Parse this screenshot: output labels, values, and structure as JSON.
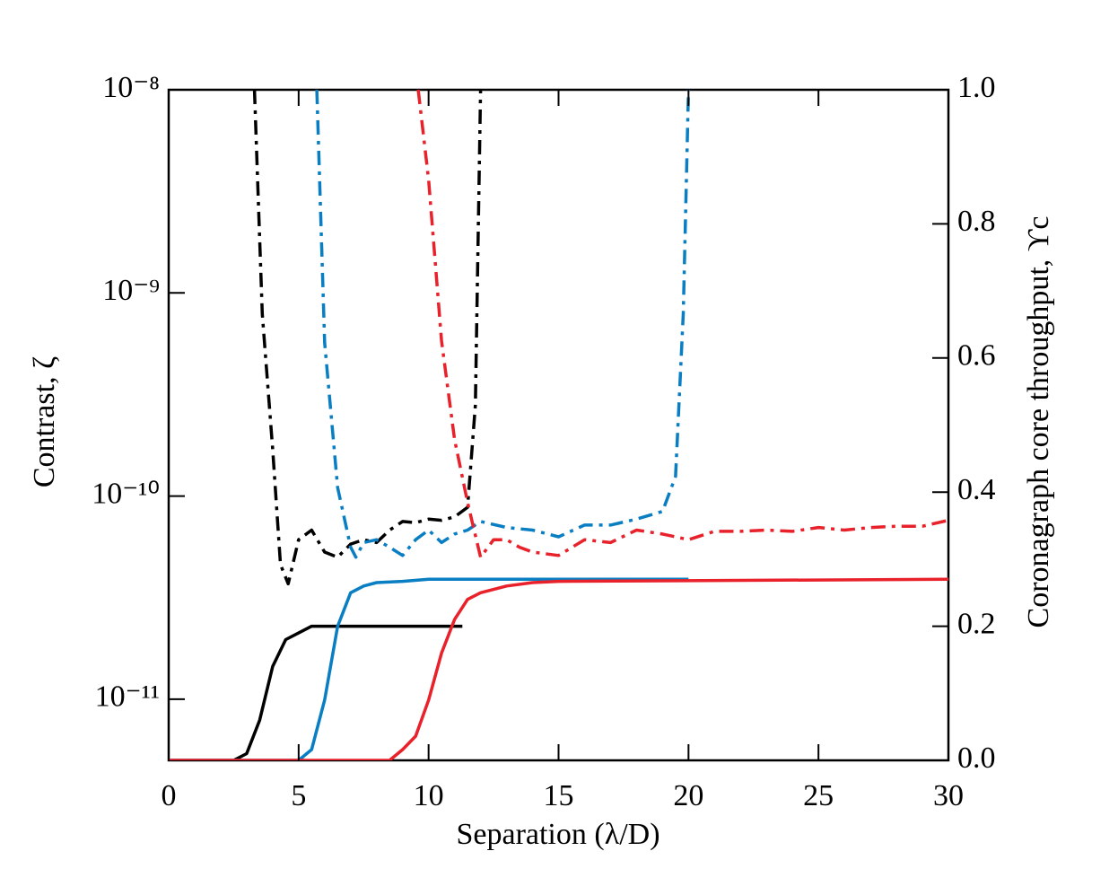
{
  "chart_data": {
    "type": "line",
    "xlabel": "Separation (λ/D)",
    "ylabel": "Contrast, ζ",
    "y2label": "Coronagraph core throughput, ϒc",
    "xlim": [
      0,
      30
    ],
    "xticks": [
      0,
      5,
      10,
      15,
      20,
      25,
      30
    ],
    "ylim": [
      5e-12,
      1e-08
    ],
    "yscale": "log",
    "yticks": [
      {
        "value": 1e-11,
        "label": "10⁻¹¹"
      },
      {
        "value": 1e-10,
        "label": "10⁻¹⁰"
      },
      {
        "value": 1e-09,
        "label": "10⁻⁹"
      },
      {
        "value": 1e-08,
        "label": "10⁻⁸"
      }
    ],
    "y2lim": [
      0,
      1
    ],
    "y2ticks": [
      {
        "value": 0,
        "label": "0.0"
      },
      0.2,
      0.4,
      0.6,
      0.8,
      {
        "value": 1,
        "label": "1.0"
      }
    ],
    "series": [
      {
        "color": "#000000",
        "linestyle": "dashdot",
        "axis": "y",
        "x": [
          3.3,
          3.6,
          4.0,
          4.3,
          4.6,
          5.0,
          5.5,
          6.0,
          6.5,
          7.0,
          7.5,
          8.0,
          8.5,
          9.0,
          9.5,
          10.0,
          10.5,
          11.0,
          11.5,
          11.8,
          12.0
        ],
        "values": [
          1e-08,
          7.9e-10,
          1.7e-10,
          4.6e-11,
          3.7e-11,
          6.1e-11,
          6.8e-11,
          5.3e-11,
          5e-11,
          5.8e-11,
          6.1e-11,
          5.9e-11,
          6.8e-11,
          7.5e-11,
          7.4e-11,
          7.7e-11,
          7.6e-11,
          7.9e-11,
          8.8e-11,
          2.8e-10,
          1e-08
        ]
      },
      {
        "color": "#0a7ec2",
        "linestyle": "dashdot",
        "axis": "y",
        "x": [
          5.7,
          6.0,
          6.5,
          7.0,
          7.2,
          7.5,
          8.0,
          8.5,
          9.0,
          9.5,
          10.0,
          10.5,
          11.0,
          11.5,
          12.0,
          13.0,
          14.0,
          15.0,
          16.0,
          17.0,
          18.0,
          19.0,
          19.5,
          19.8,
          20.0
        ],
        "values": [
          1e-08,
          5.7e-10,
          1.1e-10,
          5.6e-11,
          5e-11,
          5.9e-11,
          6.1e-11,
          5.6e-11,
          5.1e-11,
          6.1e-11,
          6.8e-11,
          5.9e-11,
          6.5e-11,
          6.8e-11,
          7.5e-11,
          7e-11,
          6.8e-11,
          6.3e-11,
          7.2e-11,
          7.2e-11,
          7.7e-11,
          8.4e-11,
          1.25e-10,
          7.9e-10,
          1e-08
        ]
      },
      {
        "color": "#e8212b",
        "linestyle": "dashdot",
        "axis": "y",
        "x": [
          9.6,
          10.0,
          10.5,
          11.0,
          11.5,
          12.0,
          12.5,
          13.0,
          13.5,
          14.0,
          15.0,
          16.0,
          17.0,
          18.0,
          19.0,
          20.0,
          21.0,
          22.0,
          23.0,
          24.0,
          25.0,
          26.0,
          27.0,
          28.0,
          29.0,
          30.0
        ],
        "values": [
          1e-08,
          3.6e-09,
          5.8e-10,
          1.9e-10,
          9.3e-11,
          5e-11,
          6.1e-11,
          6.1e-11,
          5.6e-11,
          5.3e-11,
          5.1e-11,
          6.1e-11,
          5.9e-11,
          6.8e-11,
          6.5e-11,
          6.1e-11,
          6.7e-11,
          6.7e-11,
          6.8e-11,
          6.7e-11,
          7e-11,
          6.8e-11,
          7e-11,
          7.1e-11,
          7.1e-11,
          7.6e-11
        ]
      },
      {
        "color": "#000000",
        "linestyle": "solid",
        "axis": "y2",
        "x": [
          0,
          2.5,
          3.0,
          3.5,
          4.0,
          4.5,
          5.0,
          5.5,
          6.0,
          11.3
        ],
        "values": [
          0,
          0,
          0.01,
          0.06,
          0.14,
          0.18,
          0.19,
          0.2,
          0.2,
          0.2
        ]
      },
      {
        "color": "#0a7ec2",
        "linestyle": "solid",
        "axis": "y2",
        "x": [
          0,
          5.0,
          5.5,
          6.0,
          6.5,
          7.0,
          7.5,
          8.0,
          9.0,
          10.0,
          20.0
        ],
        "values": [
          0,
          0,
          0.016,
          0.09,
          0.2,
          0.25,
          0.26,
          0.265,
          0.267,
          0.27,
          0.27
        ]
      },
      {
        "color": "#e8212b",
        "linestyle": "solid",
        "axis": "y2",
        "x": [
          0,
          8.5,
          9.0,
          9.5,
          10.0,
          10.5,
          11.0,
          11.5,
          12.0,
          13.0,
          14.0,
          15.0,
          30.0
        ],
        "values": [
          0,
          0,
          0.016,
          0.036,
          0.09,
          0.16,
          0.21,
          0.24,
          0.25,
          0.26,
          0.265,
          0.267,
          0.27
        ]
      }
    ]
  }
}
